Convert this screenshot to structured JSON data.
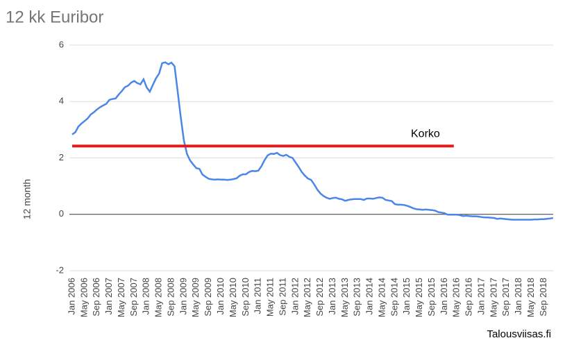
{
  "chart_data": {
    "type": "line",
    "title": "12 kk Euribor",
    "y_label": "12 month",
    "watermark": "Talousviisas.fi",
    "categories": [
      "Jan 2006",
      null,
      null,
      null,
      "May 2006",
      null,
      null,
      null,
      "Sep 2006",
      null,
      null,
      null,
      "Jan 2007",
      null,
      null,
      null,
      "May 2007",
      null,
      null,
      null,
      "Sep 2007",
      null,
      null,
      null,
      "Jan 2008",
      null,
      null,
      null,
      "May 2008",
      null,
      null,
      null,
      "Sep 2008",
      null,
      null,
      null,
      "Jan 2009",
      null,
      null,
      null,
      "May 2009",
      null,
      null,
      null,
      "Sep 2009",
      null,
      null,
      null,
      "Jan 2010",
      null,
      null,
      null,
      "May 2010",
      null,
      null,
      null,
      "Sep 2010",
      null,
      null,
      null,
      "Jan 2011",
      null,
      null,
      null,
      "May 2011",
      null,
      null,
      null,
      "Sep 2011",
      null,
      null,
      null,
      "Jan 2012",
      null,
      null,
      null,
      "May 2012",
      null,
      null,
      null,
      "Sep 2012",
      null,
      null,
      null,
      "Jan 2013",
      null,
      null,
      null,
      "May 2013",
      null,
      null,
      null,
      "Sep 2013",
      null,
      null,
      null,
      "Jan 2014",
      null,
      null,
      null,
      "May 2014",
      null,
      null,
      null,
      "Sep 2014",
      null,
      null,
      null,
      "Jan 2015",
      null,
      null,
      null,
      "May 2015",
      null,
      null,
      null,
      "Sep 2015",
      null,
      null,
      null,
      "Jan 2016",
      null,
      null,
      null,
      "May 2016",
      null,
      null,
      null,
      "Sep 2016",
      null,
      null,
      null,
      "Jan 2017",
      null,
      null,
      null,
      "May 2017",
      null,
      null,
      null,
      "Sep 2017",
      null,
      null,
      null,
      "Jan 2018",
      null,
      null,
      null,
      "May 2018",
      null,
      null,
      null,
      "Sep 2018",
      null,
      null,
      null
    ],
    "series": [
      {
        "name": "12 month",
        "color": "#4a86e8",
        "values": [
          2.83,
          2.91,
          3.11,
          3.22,
          3.31,
          3.4,
          3.54,
          3.62,
          3.72,
          3.8,
          3.86,
          3.92,
          4.06,
          4.09,
          4.11,
          4.25,
          4.37,
          4.51,
          4.56,
          4.67,
          4.73,
          4.65,
          4.61,
          4.79,
          4.5,
          4.35,
          4.59,
          4.82,
          4.99,
          5.36,
          5.39,
          5.32,
          5.38,
          5.25,
          4.35,
          3.45,
          2.62,
          2.14,
          1.91,
          1.77,
          1.64,
          1.61,
          1.41,
          1.33,
          1.26,
          1.24,
          1.23,
          1.24,
          1.23,
          1.23,
          1.22,
          1.23,
          1.25,
          1.28,
          1.37,
          1.42,
          1.42,
          1.5,
          1.54,
          1.53,
          1.55,
          1.71,
          1.92,
          2.09,
          2.15,
          2.14,
          2.18,
          2.1,
          2.07,
          2.11,
          2.04,
          2.0,
          1.84,
          1.68,
          1.5,
          1.37,
          1.27,
          1.22,
          1.06,
          0.88,
          0.74,
          0.65,
          0.59,
          0.55,
          0.58,
          0.59,
          0.55,
          0.53,
          0.48,
          0.51,
          0.53,
          0.54,
          0.54,
          0.54,
          0.51,
          0.56,
          0.56,
          0.55,
          0.58,
          0.6,
          0.59,
          0.51,
          0.49,
          0.47,
          0.36,
          0.34,
          0.34,
          0.33,
          0.3,
          0.26,
          0.21,
          0.18,
          0.17,
          0.16,
          0.17,
          0.16,
          0.15,
          0.13,
          0.08,
          0.06,
          0.04,
          -0.01,
          -0.01,
          -0.01,
          -0.01,
          -0.03,
          -0.06,
          -0.05,
          -0.06,
          -0.07,
          -0.07,
          -0.08,
          -0.1,
          -0.11,
          -0.11,
          -0.12,
          -0.13,
          -0.16,
          -0.15,
          -0.16,
          -0.17,
          -0.18,
          -0.19,
          -0.19,
          -0.19,
          -0.19,
          -0.19,
          -0.19,
          -0.19,
          -0.18,
          -0.18,
          -0.17,
          -0.17,
          -0.16,
          -0.15,
          -0.13
        ]
      },
      {
        "name": "Korko",
        "color": "#e31a1c",
        "values": [
          2.42,
          2.42,
          2.42,
          2.42,
          2.42,
          2.42,
          2.42,
          2.42,
          2.42,
          2.42,
          2.42,
          2.42,
          2.42,
          2.42,
          2.42,
          2.42,
          2.42,
          2.42,
          2.42,
          2.42,
          2.42,
          2.42,
          2.42,
          2.42,
          2.42,
          2.42,
          2.42,
          2.42,
          2.42,
          2.42,
          2.42,
          2.42,
          2.42,
          2.42,
          2.42,
          2.42,
          2.42,
          2.42,
          2.42,
          2.42,
          2.42,
          2.42,
          2.42,
          2.42,
          2.42,
          2.42,
          2.42,
          2.42,
          2.42,
          2.42,
          2.42,
          2.42,
          2.42,
          2.42,
          2.42,
          2.42,
          2.42,
          2.42,
          2.42,
          2.42,
          2.42,
          2.42,
          2.42,
          2.42,
          2.42,
          2.42,
          2.42,
          2.42,
          2.42,
          2.42,
          2.42,
          2.42,
          2.42,
          2.42,
          2.42,
          2.42,
          2.42,
          2.42,
          2.42,
          2.42,
          2.42,
          2.42,
          2.42,
          2.42,
          2.42,
          2.42,
          2.42,
          2.42,
          2.42,
          2.42,
          2.42,
          2.42,
          2.42,
          2.42,
          2.42,
          2.42,
          2.42,
          2.42,
          2.42,
          2.42,
          2.42,
          2.42,
          2.42,
          2.42,
          2.42,
          2.42,
          2.42,
          2.42,
          2.42,
          2.42,
          2.42,
          2.42,
          2.42,
          2.42,
          2.42,
          2.42,
          2.42,
          2.42,
          2.42,
          2.42,
          2.42,
          2.42,
          2.42,
          2.42,
          null,
          null,
          null,
          null,
          null,
          null,
          null,
          null,
          null,
          null,
          null,
          null,
          null,
          null,
          null,
          null,
          null,
          null,
          null,
          null,
          null,
          null,
          null,
          null,
          null,
          null,
          null,
          null,
          null,
          null,
          null,
          null
        ]
      }
    ],
    "ylim": [
      -2,
      6
    ],
    "yticks": [
      -2,
      0,
      2,
      4,
      6
    ],
    "grid": true
  }
}
